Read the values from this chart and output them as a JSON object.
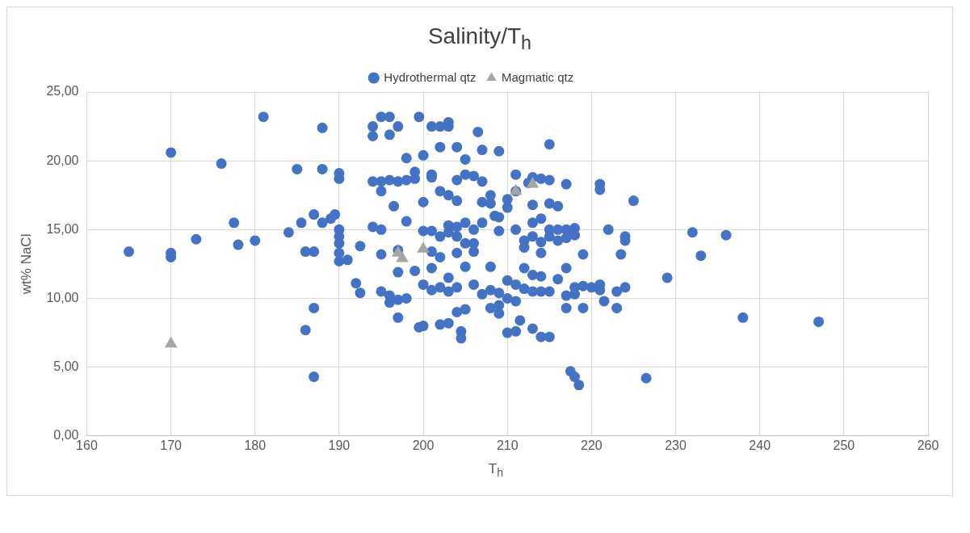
{
  "chart_data": {
    "type": "scatter",
    "title": "Salinity/T$_{h}$",
    "xlabel": "T$_{h}$",
    "ylabel": "wt% NaCl",
    "xlim": [
      160,
      260
    ],
    "xticks": [
      160,
      170,
      180,
      190,
      200,
      210,
      220,
      230,
      240,
      250,
      260
    ],
    "ylim": [
      0,
      25
    ],
    "yticks": [
      {
        "value": 0,
        "label": "0,00"
      },
      {
        "value": 5,
        "label": "5,00"
      },
      {
        "value": 10,
        "label": "10,00"
      },
      {
        "value": 15,
        "label": "15,00"
      },
      {
        "value": 20,
        "label": "20,00"
      },
      {
        "value": 25,
        "label": "25,00"
      }
    ],
    "grid": true,
    "legend": "top",
    "series": [
      {
        "name": "Hydrothermal qtz",
        "color": "#4472c4",
        "marker": "circle",
        "x": [
          165,
          170,
          170,
          170,
          173,
          176,
          177.5,
          178,
          180,
          181,
          184,
          185,
          185.5,
          186,
          186,
          187,
          187,
          187,
          187,
          188,
          188,
          188,
          189,
          189.5,
          190,
          190,
          190,
          190,
          190,
          190,
          190,
          191,
          192,
          192.5,
          192.5,
          194,
          194,
          195,
          196,
          196,
          197,
          194,
          195,
          196,
          197,
          198,
          195,
          196.5,
          194,
          195,
          195,
          197,
          196,
          197,
          197,
          195,
          196,
          197,
          198,
          198,
          198,
          199,
          199,
          199.5,
          200,
          200,
          200,
          199,
          200,
          199.5,
          200,
          201,
          201,
          201,
          201,
          201,
          201,
          201,
          202,
          202,
          202,
          202,
          202,
          202,
          202,
          203,
          203,
          203,
          203,
          203,
          203,
          203,
          203,
          204,
          204,
          204,
          204,
          204,
          204,
          204,
          204,
          204.5,
          204.5,
          205,
          205,
          205,
          205,
          205,
          205,
          206,
          206,
          206,
          206,
          206,
          206.5,
          207,
          207,
          207,
          207,
          207,
          208,
          208,
          208,
          208,
          208,
          208.5,
          209,
          209,
          209,
          209,
          209,
          209,
          210,
          210,
          210,
          210,
          210,
          211,
          211,
          211,
          211,
          211,
          211,
          211.5,
          212,
          212,
          212,
          212,
          212.5,
          213,
          213,
          213,
          213,
          213,
          213,
          213,
          214,
          214,
          214,
          214,
          214,
          214,
          214,
          215,
          215,
          215,
          215,
          215,
          215,
          215,
          216,
          216,
          216,
          216,
          217,
          217,
          217,
          217,
          217,
          217,
          217.5,
          218,
          218,
          218,
          218,
          218,
          218.5,
          219,
          219,
          219,
          220,
          221,
          221,
          221,
          221,
          221.5,
          222,
          223,
          223,
          223.5,
          224,
          224,
          224,
          225,
          226.5,
          229,
          232,
          233,
          236,
          238,
          247
        ],
        "values": [
          13.4,
          20.6,
          13.3,
          13.0,
          14.3,
          19.8,
          15.5,
          13.9,
          14.2,
          23.2,
          14.8,
          19.4,
          15.5,
          13.4,
          7.7,
          16.1,
          13.4,
          9.3,
          4.3,
          22.4,
          19.4,
          15.5,
          15.8,
          16.1,
          19.1,
          18.7,
          15.0,
          14.5,
          14.0,
          13.3,
          12.7,
          12.8,
          11.1,
          10.4,
          13.8,
          22.5,
          21.8,
          23.2,
          23.2,
          21.9,
          22.5,
          18.5,
          18.5,
          18.6,
          18.5,
          18.6,
          17.8,
          16.7,
          15.2,
          15.0,
          13.2,
          13.5,
          9.7,
          9.9,
          8.6,
          10.5,
          10.2,
          11.9,
          10.0,
          15.6,
          20.2,
          19.2,
          18.7,
          23.2,
          20.4,
          17.0,
          14.9,
          12.0,
          11.0,
          7.9,
          8.0,
          18.8,
          19.0,
          14.9,
          13.4,
          12.2,
          10.6,
          22.5,
          22.5,
          21.0,
          17.8,
          14.5,
          13.0,
          10.8,
          8.1,
          22.5,
          22.8,
          17.5,
          15.3,
          14.8,
          11.5,
          10.5,
          8.2,
          21.0,
          18.6,
          17.1,
          15.2,
          14.5,
          13.3,
          10.8,
          9.0,
          7.6,
          7.1,
          20.1,
          19.0,
          15.5,
          14.0,
          12.3,
          9.2,
          18.9,
          15.0,
          14.0,
          13.4,
          11.0,
          22.1,
          20.8,
          18.5,
          15.5,
          17.0,
          10.3,
          17.5,
          16.9,
          12.3,
          10.6,
          9.3,
          16.0,
          20.7,
          15.9,
          14.9,
          10.4,
          8.9,
          9.5,
          17.2,
          16.6,
          11.3,
          10.0,
          7.5,
          19.0,
          17.8,
          15.0,
          11.0,
          9.8,
          7.6,
          8.4,
          14.2,
          12.2,
          10.7,
          13.7,
          18.4,
          18.8,
          16.8,
          15.5,
          14.5,
          11.7,
          10.5,
          7.8,
          18.7,
          15.8,
          14.1,
          13.3,
          11.6,
          10.5,
          7.2,
          21.2,
          18.6,
          16.9,
          15.0,
          14.5,
          10.5,
          7.2,
          15.0,
          14.2,
          11.4,
          16.7,
          18.3,
          15.0,
          14.4,
          12.2,
          10.2,
          9.3,
          4.7,
          15.1,
          14.6,
          10.8,
          10.3,
          4.3,
          3.7,
          10.9,
          9.3,
          13.2,
          10.8,
          10.6,
          18.3,
          17.9,
          11.0,
          9.8,
          15.0,
          9.3,
          10.5,
          13.2,
          14.5,
          14.2,
          10.8,
          17.1,
          4.2,
          11.5,
          14.8,
          13.1,
          14.6,
          8.6,
          8.3
        ]
      },
      {
        "name": "Magmatic qtz",
        "color": "#a5a5a5",
        "marker": "triangle",
        "x": [
          170,
          197,
          197.5,
          200,
          211,
          213
        ],
        "values": [
          6.7,
          13.3,
          12.9,
          13.6,
          17.8,
          18.3
        ]
      }
    ]
  }
}
